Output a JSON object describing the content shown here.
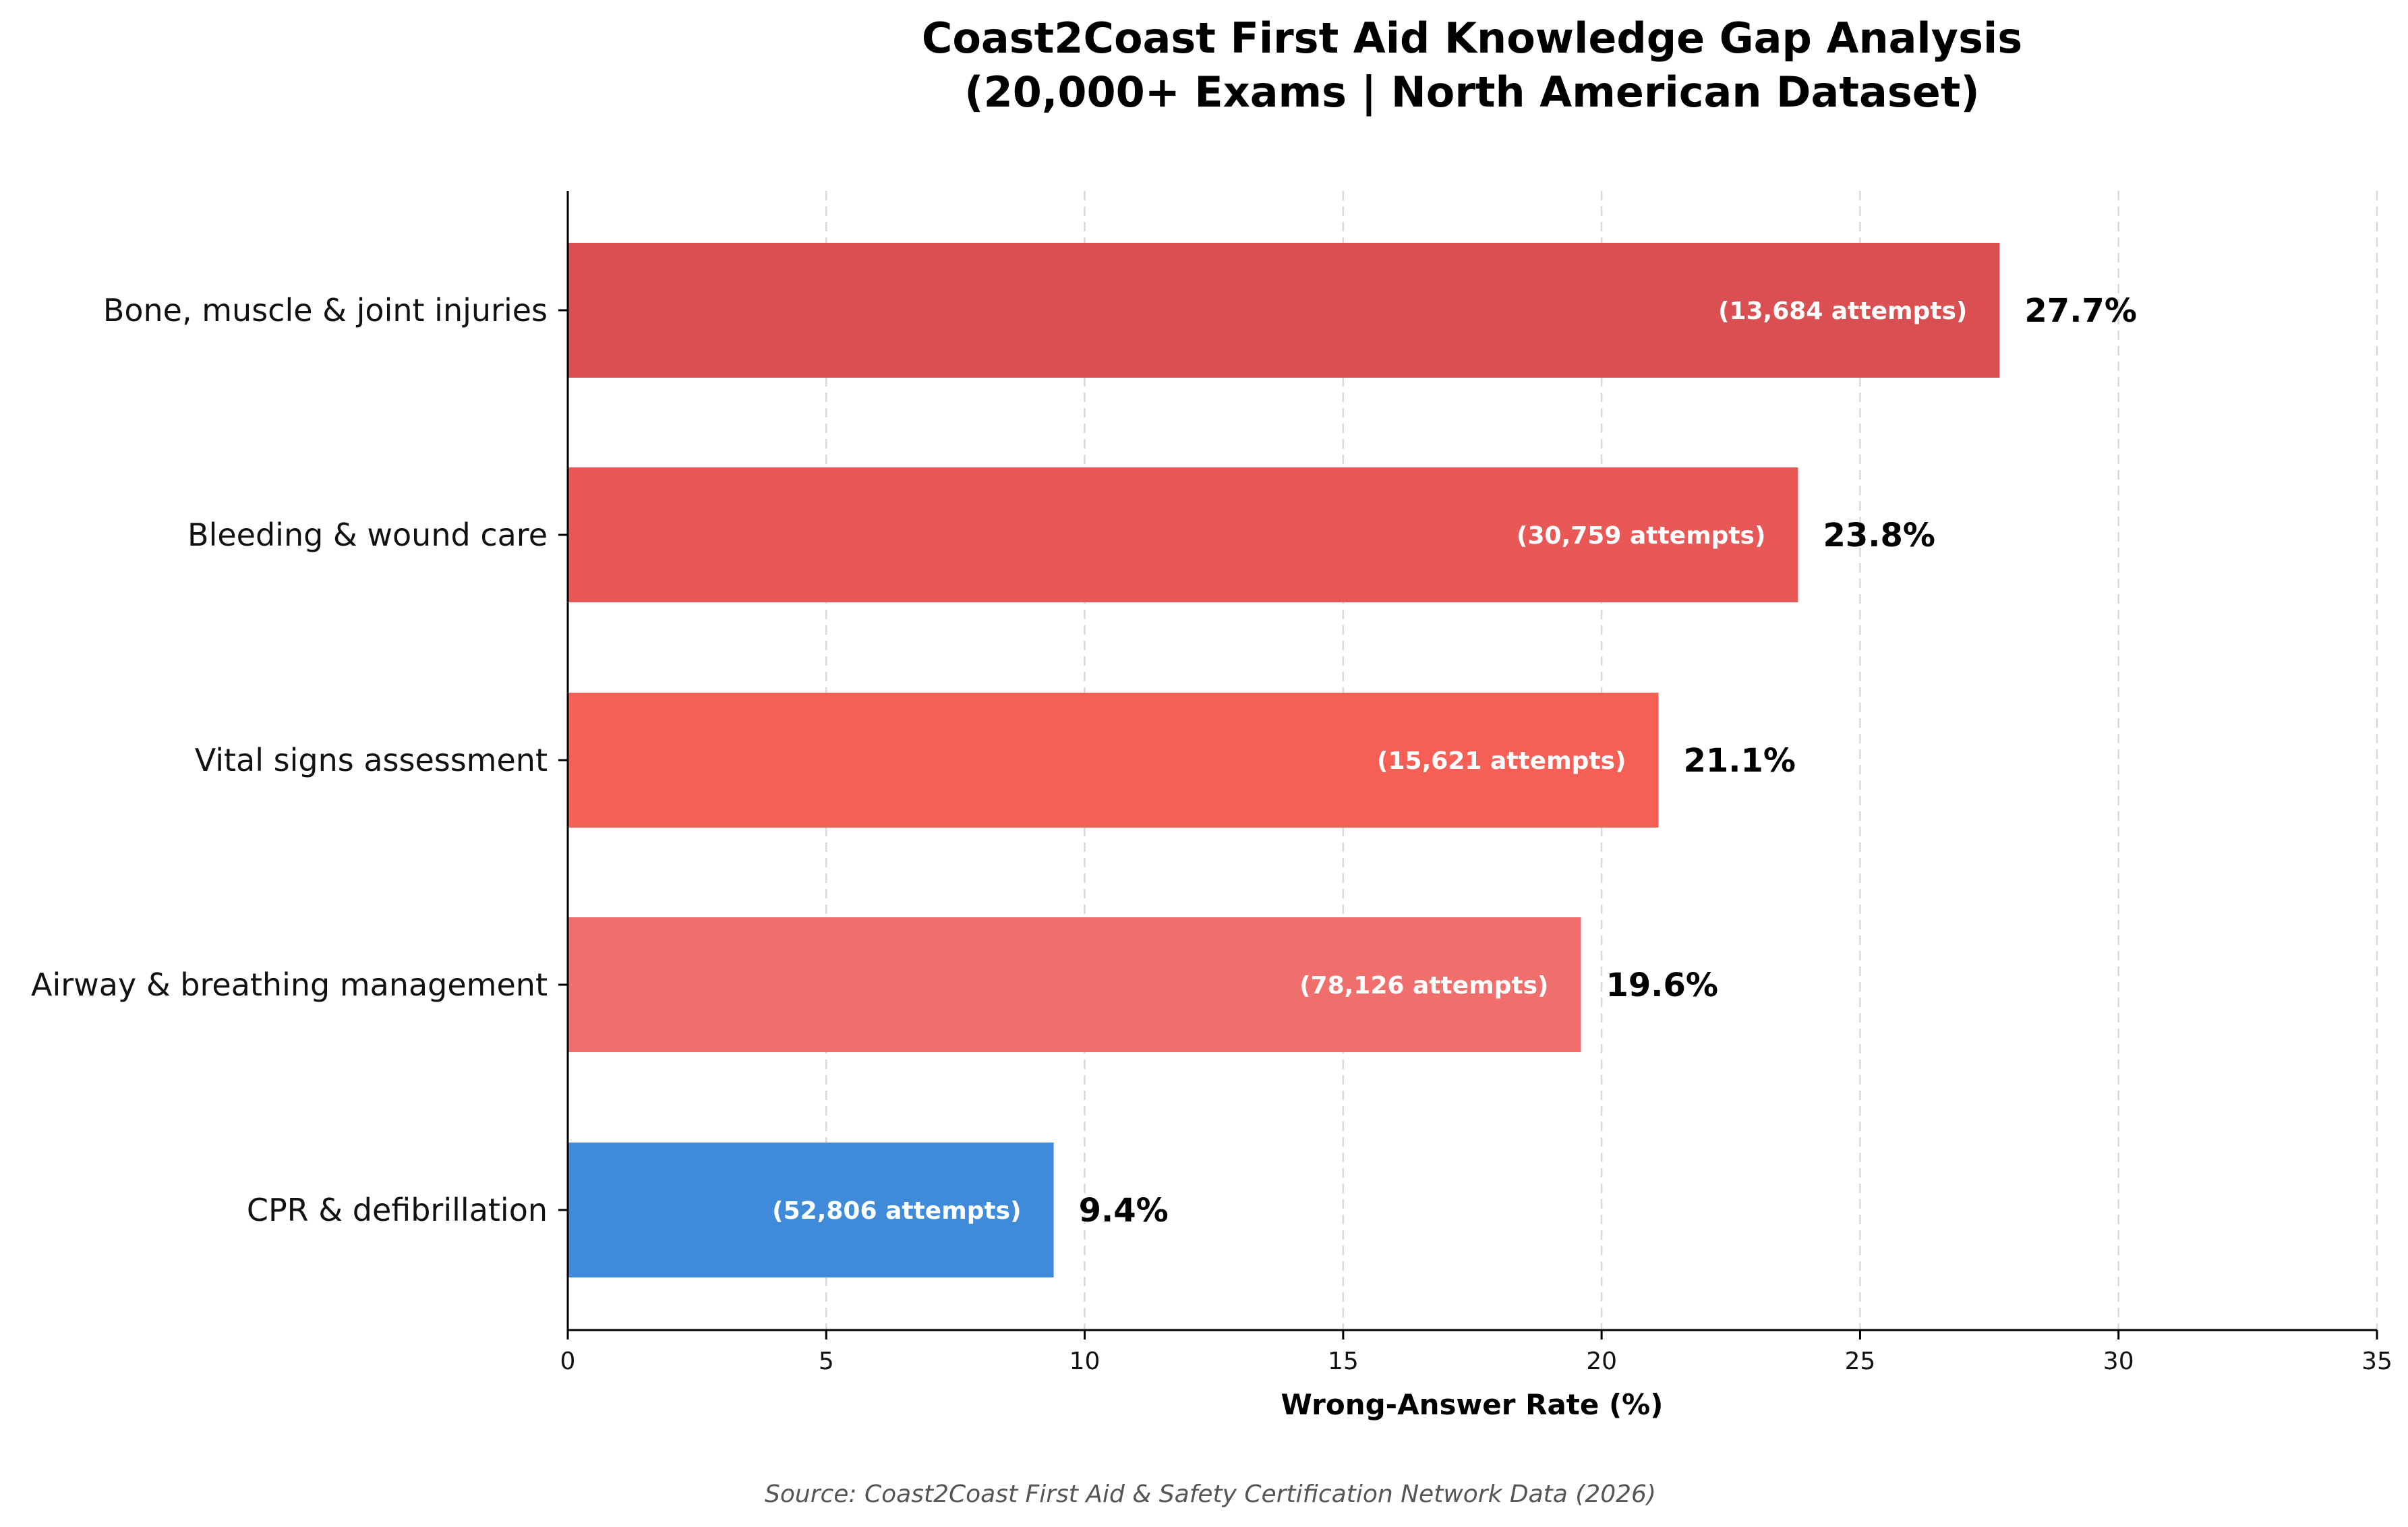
{
  "chart_data": {
    "type": "bar",
    "orientation": "horizontal",
    "title": "Coast2Coast First Aid Knowledge Gap Analysis",
    "subtitle": "(20,000+ Exams | North American Dataset)",
    "xlabel": "Wrong-Answer Rate (%)",
    "ylabel": "",
    "xlim": [
      0,
      35
    ],
    "xticks": [
      0,
      5,
      10,
      15,
      20,
      25,
      30,
      35
    ],
    "grid": "vertical-dashed",
    "categories": [
      "Bone, muscle & joint injuries",
      "Bleeding & wound care",
      "Vital signs assessment",
      "Airway & breathing management",
      "CPR & defibrillation"
    ],
    "values": [
      27.7,
      23.8,
      21.1,
      19.6,
      9.4
    ],
    "value_labels": [
      "27.7%",
      "23.8%",
      "21.1%",
      "19.6%",
      "9.4%"
    ],
    "attempt_labels": [
      "(13,684 attempts)",
      "(30,759 attempts)",
      "(15,621 attempts)",
      "(78,126 attempts)",
      "(52,806 attempts)"
    ],
    "colors": [
      "#d94f52",
      "#e85857",
      "#f55f55",
      "#f06e6b",
      "#3f8bd9"
    ],
    "source": "Source: Coast2Coast First Aid & Safety Certification Network Data (2026)"
  }
}
